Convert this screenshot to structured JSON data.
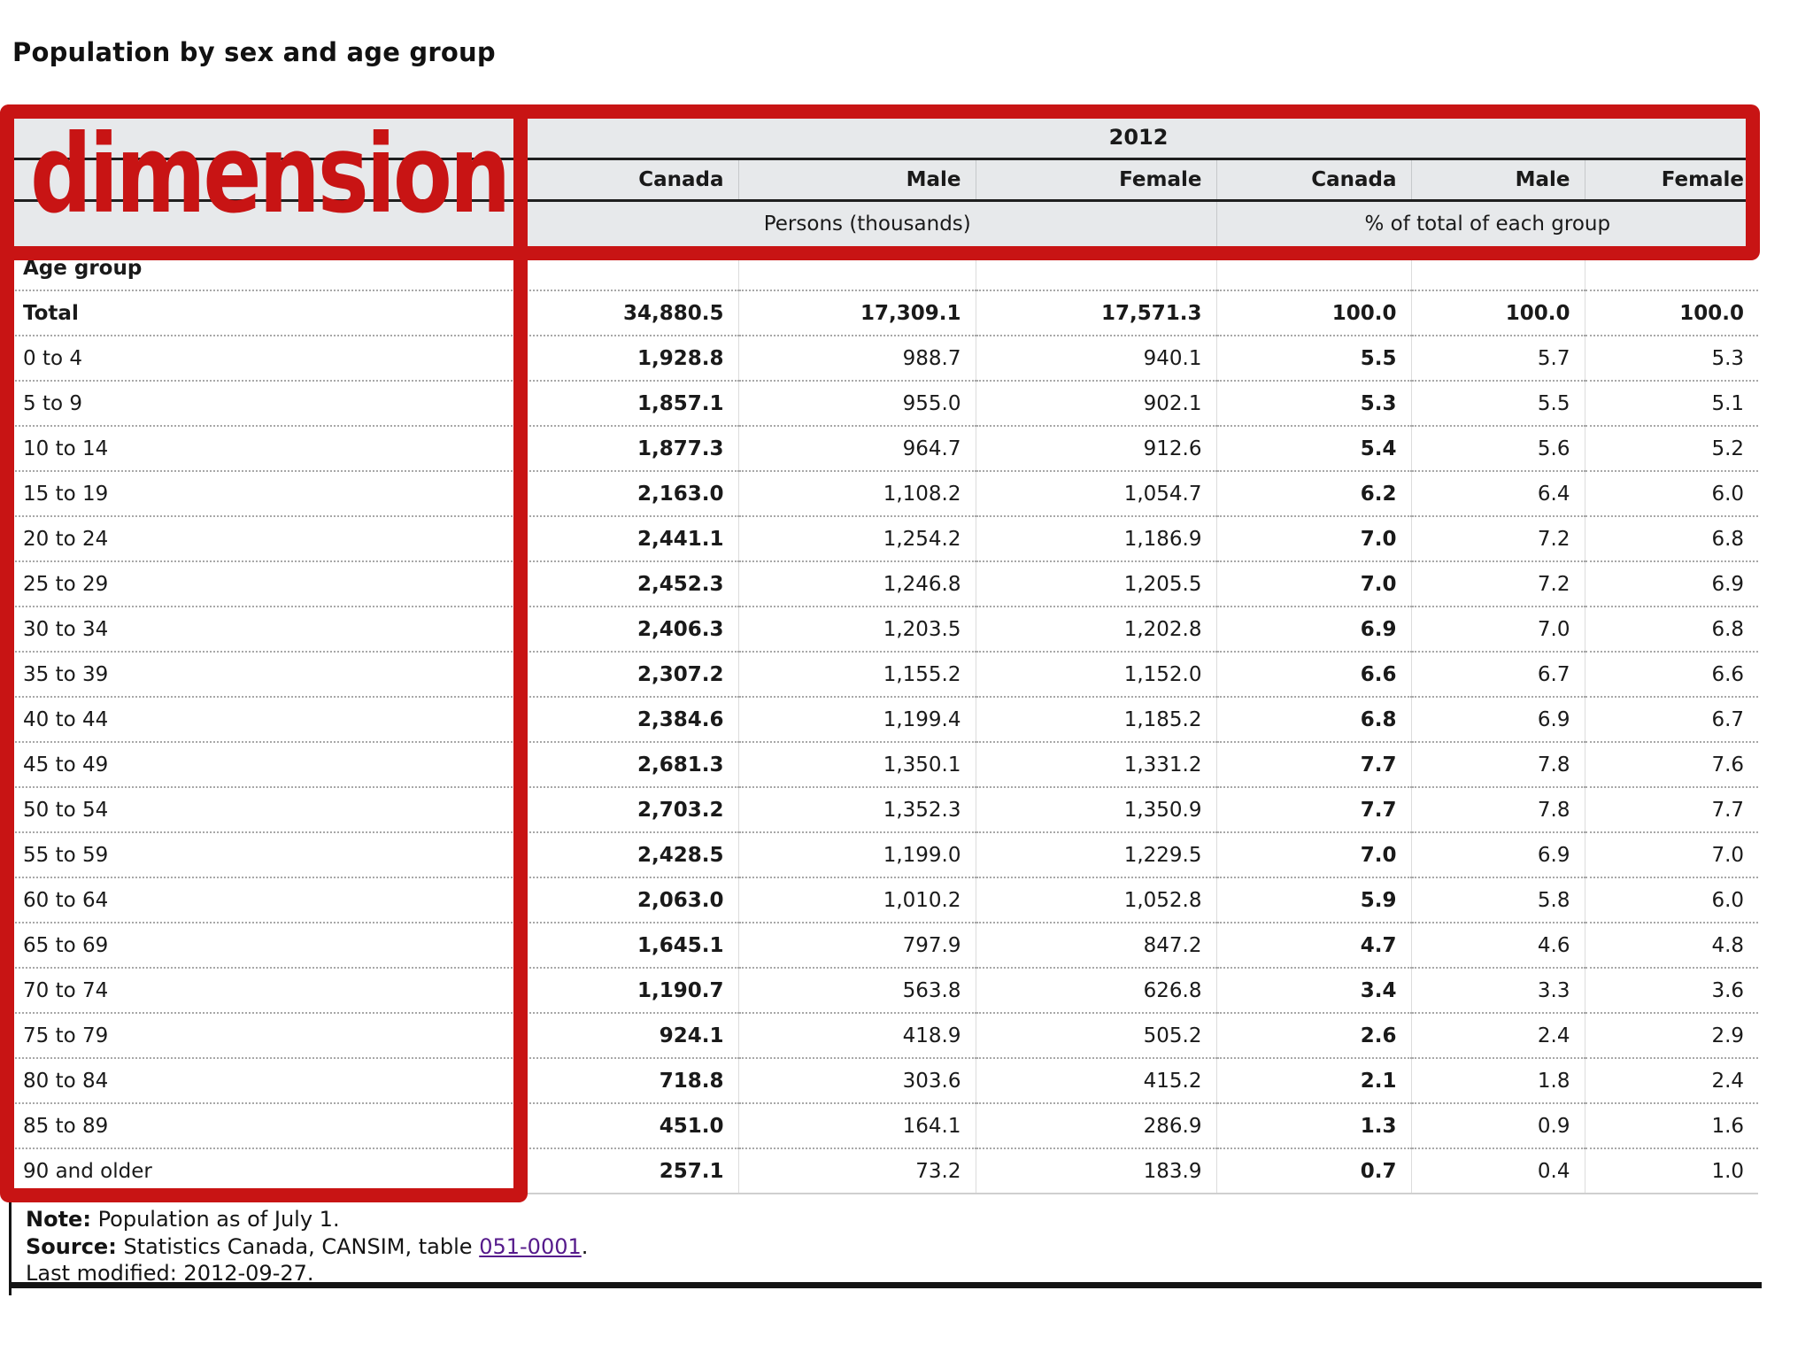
{
  "page": {
    "title": "Population by sex and age group"
  },
  "annotations": {
    "dimension_label": "dimension"
  },
  "colors": {
    "annotation_red": "#c81414",
    "header_background": "#e7e9eb",
    "link_purple": "#551a8b",
    "rule_black": "#141414"
  },
  "table": {
    "year_header": "2012",
    "column_headers": [
      "Canada",
      "Male",
      "Female",
      "Canada",
      "Male",
      "Female"
    ],
    "group_headers": [
      "Persons (thousands)",
      "% of total of each group"
    ],
    "dimension_header": "Age group",
    "rows": [
      {
        "label": "Total",
        "bold": true,
        "values": [
          "34,880.5",
          "17,309.1",
          "17,571.3",
          "100.0",
          "100.0",
          "100.0"
        ]
      },
      {
        "label": "0 to 4",
        "values": [
          "1,928.8",
          "988.7",
          "940.1",
          "5.5",
          "5.7",
          "5.3"
        ]
      },
      {
        "label": "5 to 9",
        "values": [
          "1,857.1",
          "955.0",
          "902.1",
          "5.3",
          "5.5",
          "5.1"
        ]
      },
      {
        "label": "10 to 14",
        "values": [
          "1,877.3",
          "964.7",
          "912.6",
          "5.4",
          "5.6",
          "5.2"
        ]
      },
      {
        "label": "15 to 19",
        "values": [
          "2,163.0",
          "1,108.2",
          "1,054.7",
          "6.2",
          "6.4",
          "6.0"
        ]
      },
      {
        "label": "20 to 24",
        "values": [
          "2,441.1",
          "1,254.2",
          "1,186.9",
          "7.0",
          "7.2",
          "6.8"
        ]
      },
      {
        "label": "25 to 29",
        "values": [
          "2,452.3",
          "1,246.8",
          "1,205.5",
          "7.0",
          "7.2",
          "6.9"
        ]
      },
      {
        "label": "30 to 34",
        "values": [
          "2,406.3",
          "1,203.5",
          "1,202.8",
          "6.9",
          "7.0",
          "6.8"
        ]
      },
      {
        "label": "35 to 39",
        "values": [
          "2,307.2",
          "1,155.2",
          "1,152.0",
          "6.6",
          "6.7",
          "6.6"
        ]
      },
      {
        "label": "40 to 44",
        "values": [
          "2,384.6",
          "1,199.4",
          "1,185.2",
          "6.8",
          "6.9",
          "6.7"
        ]
      },
      {
        "label": "45 to 49",
        "values": [
          "2,681.3",
          "1,350.1",
          "1,331.2",
          "7.7",
          "7.8",
          "7.6"
        ]
      },
      {
        "label": "50 to 54",
        "values": [
          "2,703.2",
          "1,352.3",
          "1,350.9",
          "7.7",
          "7.8",
          "7.7"
        ]
      },
      {
        "label": "55 to 59",
        "values": [
          "2,428.5",
          "1,199.0",
          "1,229.5",
          "7.0",
          "6.9",
          "7.0"
        ]
      },
      {
        "label": "60 to 64",
        "values": [
          "2,063.0",
          "1,010.2",
          "1,052.8",
          "5.9",
          "5.8",
          "6.0"
        ]
      },
      {
        "label": "65 to 69",
        "values": [
          "1,645.1",
          "797.9",
          "847.2",
          "4.7",
          "4.6",
          "4.8"
        ]
      },
      {
        "label": "70 to 74",
        "values": [
          "1,190.7",
          "563.8",
          "626.8",
          "3.4",
          "3.3",
          "3.6"
        ]
      },
      {
        "label": "75 to 79",
        "values": [
          "924.1",
          "418.9",
          "505.2",
          "2.6",
          "2.4",
          "2.9"
        ]
      },
      {
        "label": "80 to 84",
        "values": [
          "718.8",
          "303.6",
          "415.2",
          "2.1",
          "1.8",
          "2.4"
        ]
      },
      {
        "label": "85 to 89",
        "values": [
          "451.0",
          "164.1",
          "286.9",
          "1.3",
          "0.9",
          "1.6"
        ]
      },
      {
        "label": "90 and older",
        "values": [
          "257.1",
          "73.2",
          "183.9",
          "0.7",
          "0.4",
          "1.0"
        ]
      }
    ]
  },
  "footer": {
    "note_label": "Note:",
    "note_text": "Population as of July 1.",
    "source_label": "Source:",
    "source_text": "Statistics Canada, CANSIM, table",
    "source_link": "051-0001",
    "source_suffix": ".",
    "last_modified": "Last modified: 2012-09-27."
  }
}
